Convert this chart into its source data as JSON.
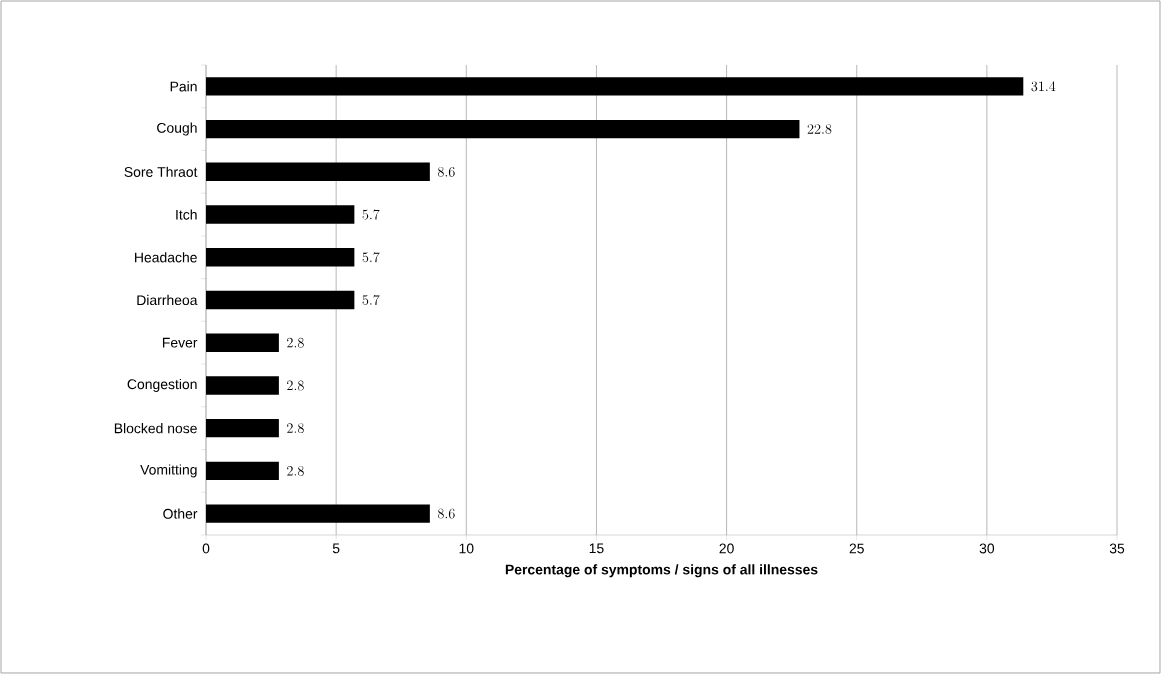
{
  "chart_data": {
    "type": "bar",
    "orientation": "horizontal",
    "xlabel": "Percentage of symptoms / signs of all illnesses",
    "categories": [
      "Pain",
      "Cough",
      "Sore Thraot",
      "Itch",
      "Headache",
      "Diarrheoa",
      "Fever",
      "Congestion",
      "Blocked nose",
      "Vomitting",
      "Other"
    ],
    "values": [
      31.4,
      22.8,
      8.6,
      5.7,
      5.7,
      5.7,
      2.8,
      2.8,
      2.8,
      2.8,
      8.6
    ],
    "color": "#000000",
    "xlim": [
      0,
      35
    ],
    "xticks": [
      0,
      5,
      10,
      15,
      20,
      25,
      30,
      35
    ],
    "grid": "x",
    "data_labels": true
  }
}
